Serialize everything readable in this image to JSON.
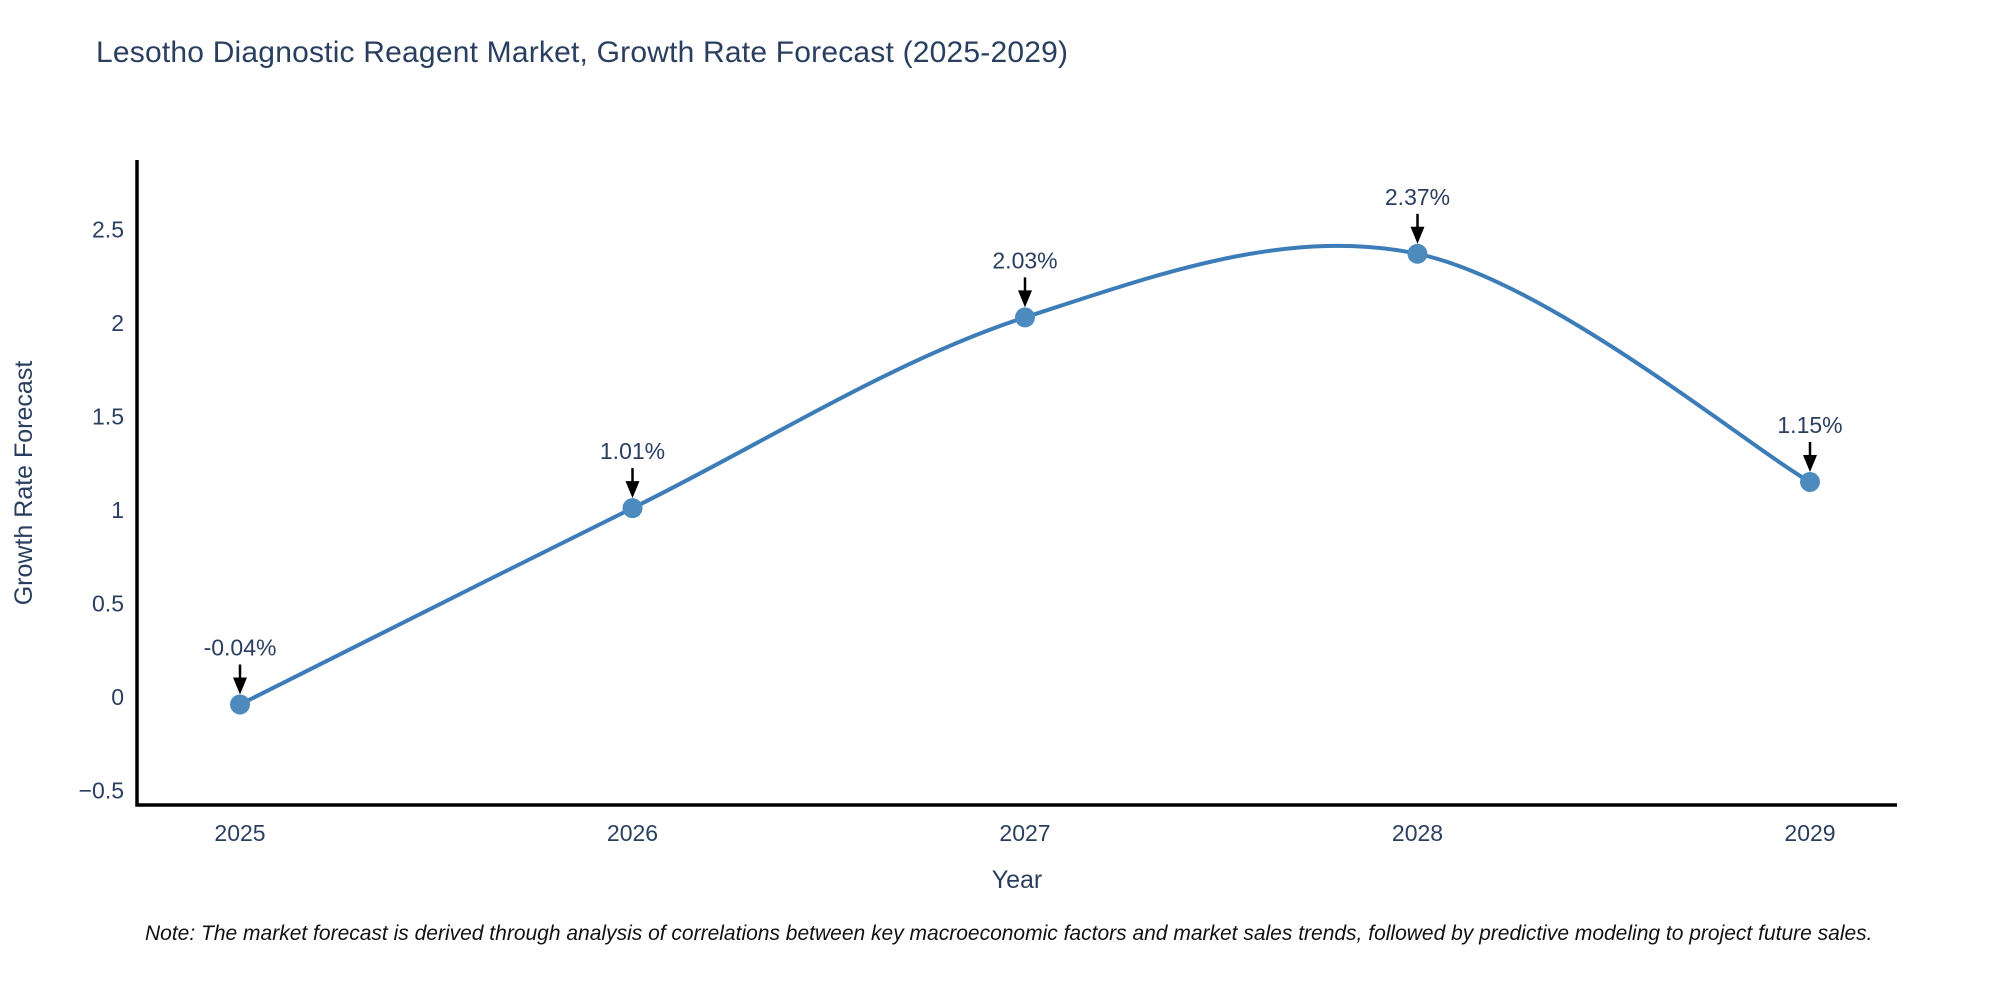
{
  "title": "Lesotho Diagnostic Reagent Market, Growth Rate Forecast (2025-2029)",
  "footnote": "Note: The market forecast is derived through analysis of correlations between key macroeconomic factors and market sales trends, followed by predictive modeling to project future sales.",
  "colors": {
    "line": "#3c7cb8",
    "marker": "#4d8bbf",
    "axis": "#000000",
    "text": "#2a3f5f",
    "annotation_text": "#2a3f5f",
    "arrow": "#000000",
    "background": "#ffffff"
  },
  "chart_data": {
    "type": "line",
    "line_shape": "spline",
    "title": "Lesotho Diagnostic Reagent Market, Growth Rate Forecast (2025-2029)",
    "xlabel": "Year",
    "ylabel": "Growth Rate Forecast",
    "categories": [
      "2025",
      "2026",
      "2027",
      "2028",
      "2029"
    ],
    "values": [
      -0.04,
      1.01,
      2.03,
      2.37,
      1.15
    ],
    "point_labels": [
      "-0.04%",
      "1.01%",
      "2.03%",
      "2.37%",
      "1.15%"
    ],
    "yticks": [
      {
        "v": 2.5,
        "label": "2.5"
      },
      {
        "v": 2,
        "label": "2"
      },
      {
        "v": 1.5,
        "label": "1.5"
      },
      {
        "v": 1,
        "label": "1"
      },
      {
        "v": 0.5,
        "label": "0.5"
      },
      {
        "v": 0,
        "label": "0"
      },
      {
        "v": -0.5,
        "label": "−0.5"
      }
    ],
    "ylim": [
      -0.58,
      2.87
    ],
    "grid": false,
    "legend_position": "none",
    "marker_annotations": "arrow-down-to-point"
  }
}
